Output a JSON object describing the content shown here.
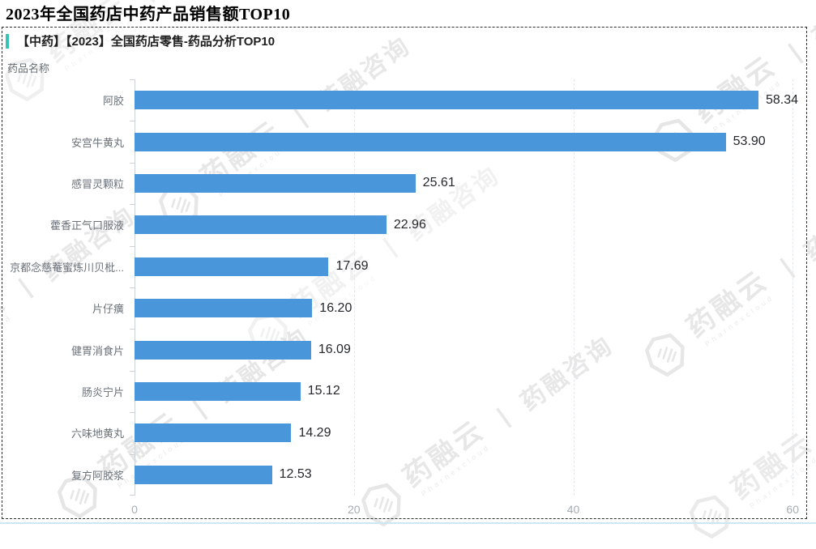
{
  "page": {
    "title": "2023年全国药店中药产品销售额TOP10"
  },
  "panel": {
    "title": "【中药】【2023】全国药店零售-药品分析TOP10"
  },
  "watermark": {
    "brand": "药融云",
    "brand_sub": "Pharnexcloud",
    "divider": "丨",
    "suffix": "药融咨询"
  },
  "chart_data": {
    "type": "bar",
    "orientation": "horizontal",
    "title": "【中药】【2023】全国药店零售-药品分析TOP10",
    "ylabel": "药品名称",
    "xlabel": "",
    "categories": [
      "阿胶",
      "安宫牛黄丸",
      "感冒灵颗粒",
      "藿香正气口服液",
      "京都念慈菴蜜炼川贝枇...",
      "片仔癀",
      "健胃消食片",
      "肠炎宁片",
      "六味地黄丸",
      "复方阿胶浆"
    ],
    "values": [
      58.34,
      53.9,
      25.61,
      22.96,
      17.69,
      16.2,
      16.09,
      15.12,
      14.29,
      12.53
    ],
    "value_labels": [
      "58.34",
      "53.90",
      "25.61",
      "22.96",
      "17.69",
      "16.20",
      "16.09",
      "15.12",
      "14.29",
      "12.53"
    ],
    "x_ticks": [
      0,
      20,
      40,
      60
    ],
    "xlim": [
      0,
      60.5
    ],
    "grid": "vertical-dashed",
    "legend": "none",
    "bar_color": "#4a96db",
    "accent_color": "#35c4b5"
  }
}
